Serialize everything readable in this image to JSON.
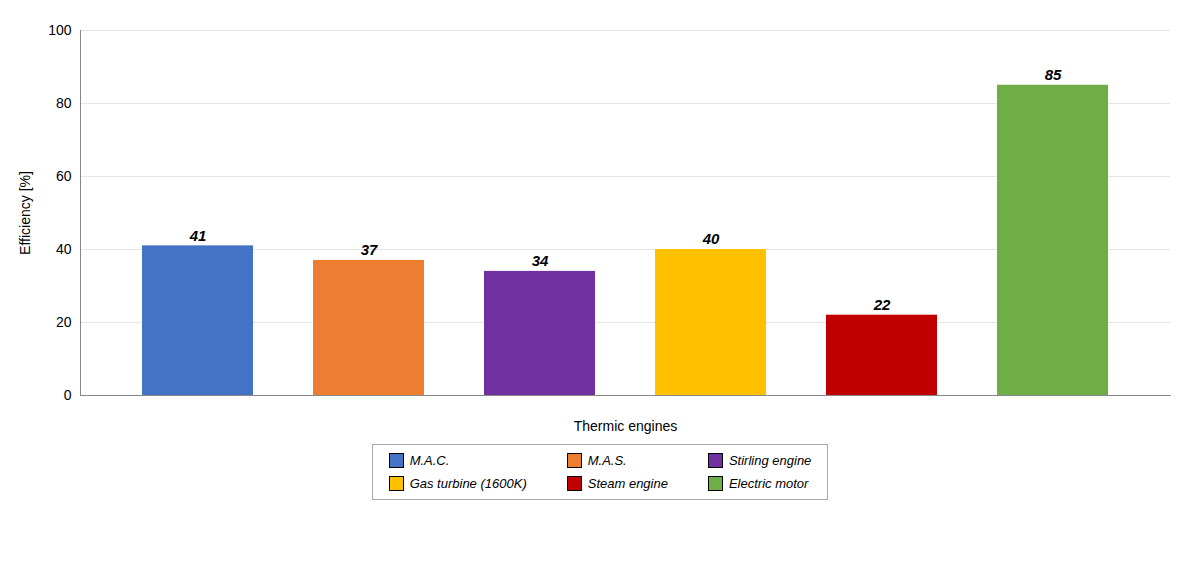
{
  "chart_data": {
    "type": "bar",
    "categories": [
      "M.A.C.",
      "M.A.S.",
      "Stirling engine",
      "Gas turbine (1600K)",
      "Steam engine",
      "Electric motor"
    ],
    "values": [
      41,
      37,
      34,
      40,
      22,
      85
    ],
    "colors": [
      "#4472C4",
      "#ED7D31",
      "#7030A0",
      "#FFC000",
      "#C00000",
      "#70AD47"
    ],
    "xlabel": "Thermic engines",
    "ylabel": "Efficiency [%]",
    "ylim": [
      0,
      100
    ],
    "yticks": [
      0,
      20,
      40,
      60,
      80,
      100
    ],
    "grid": true,
    "data_labels": true,
    "tick_labels": "y",
    "legend": "bottom"
  }
}
